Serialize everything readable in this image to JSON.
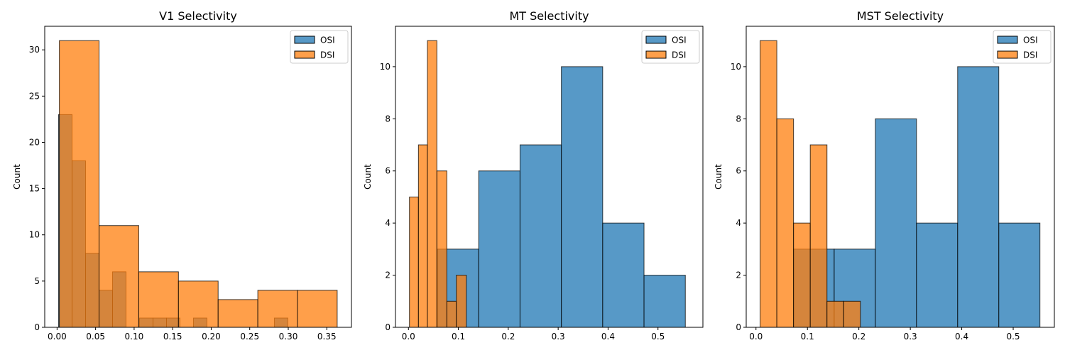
{
  "colors": {
    "osi": "#1f77b4",
    "dsi": "#ff7f0e"
  },
  "chart_data": [
    {
      "type": "bar",
      "title": "V1 Selectivity",
      "xlabel": "",
      "ylabel": "Count",
      "xlim": [
        -0.016,
        0.382
      ],
      "ylim": [
        0,
        32.55
      ],
      "xticks": [
        "0.00",
        "0.05",
        "0.10",
        "0.15",
        "0.20",
        "0.25",
        "0.30",
        "0.35"
      ],
      "xtick_values": [
        0.0,
        0.05,
        0.1,
        0.15,
        0.2,
        0.25,
        0.3,
        0.35
      ],
      "yticks": [
        "0",
        "5",
        "10",
        "15",
        "20",
        "25",
        "30"
      ],
      "ytick_values": [
        0,
        5,
        10,
        15,
        20,
        25,
        30
      ],
      "legend": {
        "position": "top-right",
        "entries": [
          "OSI",
          "DSI"
        ]
      },
      "series": [
        {
          "name": "OSI",
          "bin_edges": [
            0.002,
            0.0195,
            0.037,
            0.0545,
            0.072,
            0.0895,
            0.107,
            0.1245,
            0.142,
            0.1595,
            0.177,
            0.1945,
            0.212,
            0.2295,
            0.247,
            0.2645,
            0.282,
            0.2995,
            0.317
          ],
          "values": [
            23,
            18,
            8,
            4,
            6,
            0,
            1,
            1,
            1,
            0,
            1,
            0,
            0,
            0,
            0,
            0,
            1,
            0
          ]
        },
        {
          "name": "DSI",
          "bin_edges": [
            0.003,
            0.0545,
            0.106,
            0.1575,
            0.209,
            0.2605,
            0.312,
            0.3635
          ],
          "values": [
            31,
            11,
            6,
            5,
            3,
            4,
            4
          ]
        }
      ]
    },
    {
      "type": "bar",
      "title": "MT Selectivity",
      "xlabel": "",
      "ylabel": "Count",
      "xlim": [
        -0.026,
        0.59
      ],
      "ylim": [
        0,
        11.55
      ],
      "xticks": [
        "0.0",
        "0.1",
        "0.2",
        "0.3",
        "0.4",
        "0.5"
      ],
      "xtick_values": [
        0.0,
        0.1,
        0.2,
        0.3,
        0.4,
        0.5
      ],
      "yticks": [
        "0",
        "2",
        "4",
        "6",
        "8",
        "10"
      ],
      "ytick_values": [
        0,
        2,
        4,
        6,
        8,
        10
      ],
      "legend": {
        "position": "top-right",
        "entries": [
          "OSI",
          "DSI"
        ]
      },
      "series": [
        {
          "name": "OSI",
          "bin_edges": [
            0.058,
            0.1408,
            0.2236,
            0.3064,
            0.3892,
            0.472,
            0.5548
          ],
          "values": [
            3,
            6,
            7,
            10,
            4,
            2
          ]
        },
        {
          "name": "DSI",
          "bin_edges": [
            0.002,
            0.02,
            0.038,
            0.057,
            0.077,
            0.096,
            0.116
          ],
          "values": [
            5,
            7,
            11,
            6,
            1,
            2
          ]
        }
      ]
    },
    {
      "type": "bar",
      "title": "MST Selectivity",
      "xlabel": "",
      "ylabel": "Count",
      "xlim": [
        -0.019,
        0.58
      ],
      "ylim": [
        0,
        11.55
      ],
      "xticks": [
        "0.0",
        "0.1",
        "0.2",
        "0.3",
        "0.4",
        "0.5"
      ],
      "xtick_values": [
        0.0,
        0.1,
        0.2,
        0.3,
        0.4,
        0.5
      ],
      "yticks": [
        "0",
        "2",
        "4",
        "6",
        "8",
        "10"
      ],
      "ytick_values": [
        0,
        2,
        4,
        6,
        8,
        10
      ],
      "legend": {
        "position": "top-right",
        "entries": [
          "OSI",
          "DSI"
        ]
      },
      "series": [
        {
          "name": "OSI",
          "bin_edges": [
            0.073,
            0.152,
            0.232,
            0.312,
            0.392,
            0.472,
            0.552
          ],
          "values": [
            3,
            3,
            8,
            4,
            10,
            4
          ]
        },
        {
          "name": "DSI",
          "bin_edges": [
            0.008,
            0.0405,
            0.073,
            0.1055,
            0.138,
            0.1705,
            0.203
          ],
          "values": [
            11,
            8,
            4,
            7,
            1,
            1
          ]
        }
      ]
    }
  ]
}
